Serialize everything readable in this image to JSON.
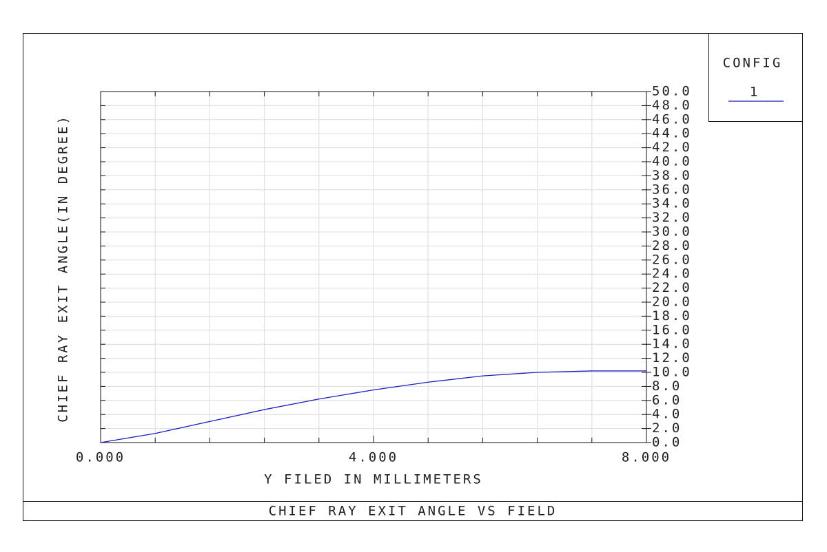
{
  "chart_data": {
    "type": "line",
    "title": "CHIEF RAY EXIT ANGLE VS FIELD",
    "xlabel": "Y FILED IN MILLIMETERS",
    "ylabel": "CHIEF RAY EXIT ANGLE(IN DEGREE)",
    "legend_title": "CONFIG",
    "x": [
      0,
      0.8,
      1.6,
      2.4,
      3.2,
      4.0,
      4.8,
      5.6,
      6.4,
      7.2,
      8.0
    ],
    "series": [
      {
        "name": "1",
        "color": "#1c1cc4",
        "values": [
          0,
          1.3,
          3.0,
          4.7,
          6.2,
          7.5,
          8.6,
          9.5,
          10.0,
          10.2,
          10.2
        ]
      }
    ],
    "xlim": [
      0,
      8
    ],
    "xticks": [
      {
        "value": 0,
        "label": "0.000"
      },
      {
        "value": 4,
        "label": "4.000"
      },
      {
        "value": 8,
        "label": "8.000"
      }
    ],
    "xgrid": [
      0,
      0.8,
      1.6,
      2.4,
      3.2,
      4.0,
      4.8,
      5.6,
      6.4,
      7.2,
      8.0
    ],
    "ylim": [
      0,
      50
    ],
    "yticks": [
      {
        "value": 0,
        "label": "0.0"
      },
      {
        "value": 2,
        "label": "2.0"
      },
      {
        "value": 4,
        "label": "4.0"
      },
      {
        "value": 6,
        "label": "6.0"
      },
      {
        "value": 8,
        "label": "8.0"
      },
      {
        "value": 10,
        "label": "10.0"
      },
      {
        "value": 12,
        "label": "12.0"
      },
      {
        "value": 14,
        "label": "14.0"
      },
      {
        "value": 16,
        "label": "16.0"
      },
      {
        "value": 18,
        "label": "18.0"
      },
      {
        "value": 20,
        "label": "20.0"
      },
      {
        "value": 22,
        "label": "22.0"
      },
      {
        "value": 24,
        "label": "24.0"
      },
      {
        "value": 26,
        "label": "26.0"
      },
      {
        "value": 28,
        "label": "28.0"
      },
      {
        "value": 30,
        "label": "30.0"
      },
      {
        "value": 32,
        "label": "32.0"
      },
      {
        "value": 34,
        "label": "34.0"
      },
      {
        "value": 36,
        "label": "36.0"
      },
      {
        "value": 38,
        "label": "38.0"
      },
      {
        "value": 40,
        "label": "40.0"
      },
      {
        "value": 42,
        "label": "42.0"
      },
      {
        "value": 44,
        "label": "44.0"
      },
      {
        "value": 46,
        "label": "46.0"
      },
      {
        "value": 48,
        "label": "48.0"
      },
      {
        "value": 50,
        "label": "50.0"
      }
    ],
    "grid": true
  }
}
